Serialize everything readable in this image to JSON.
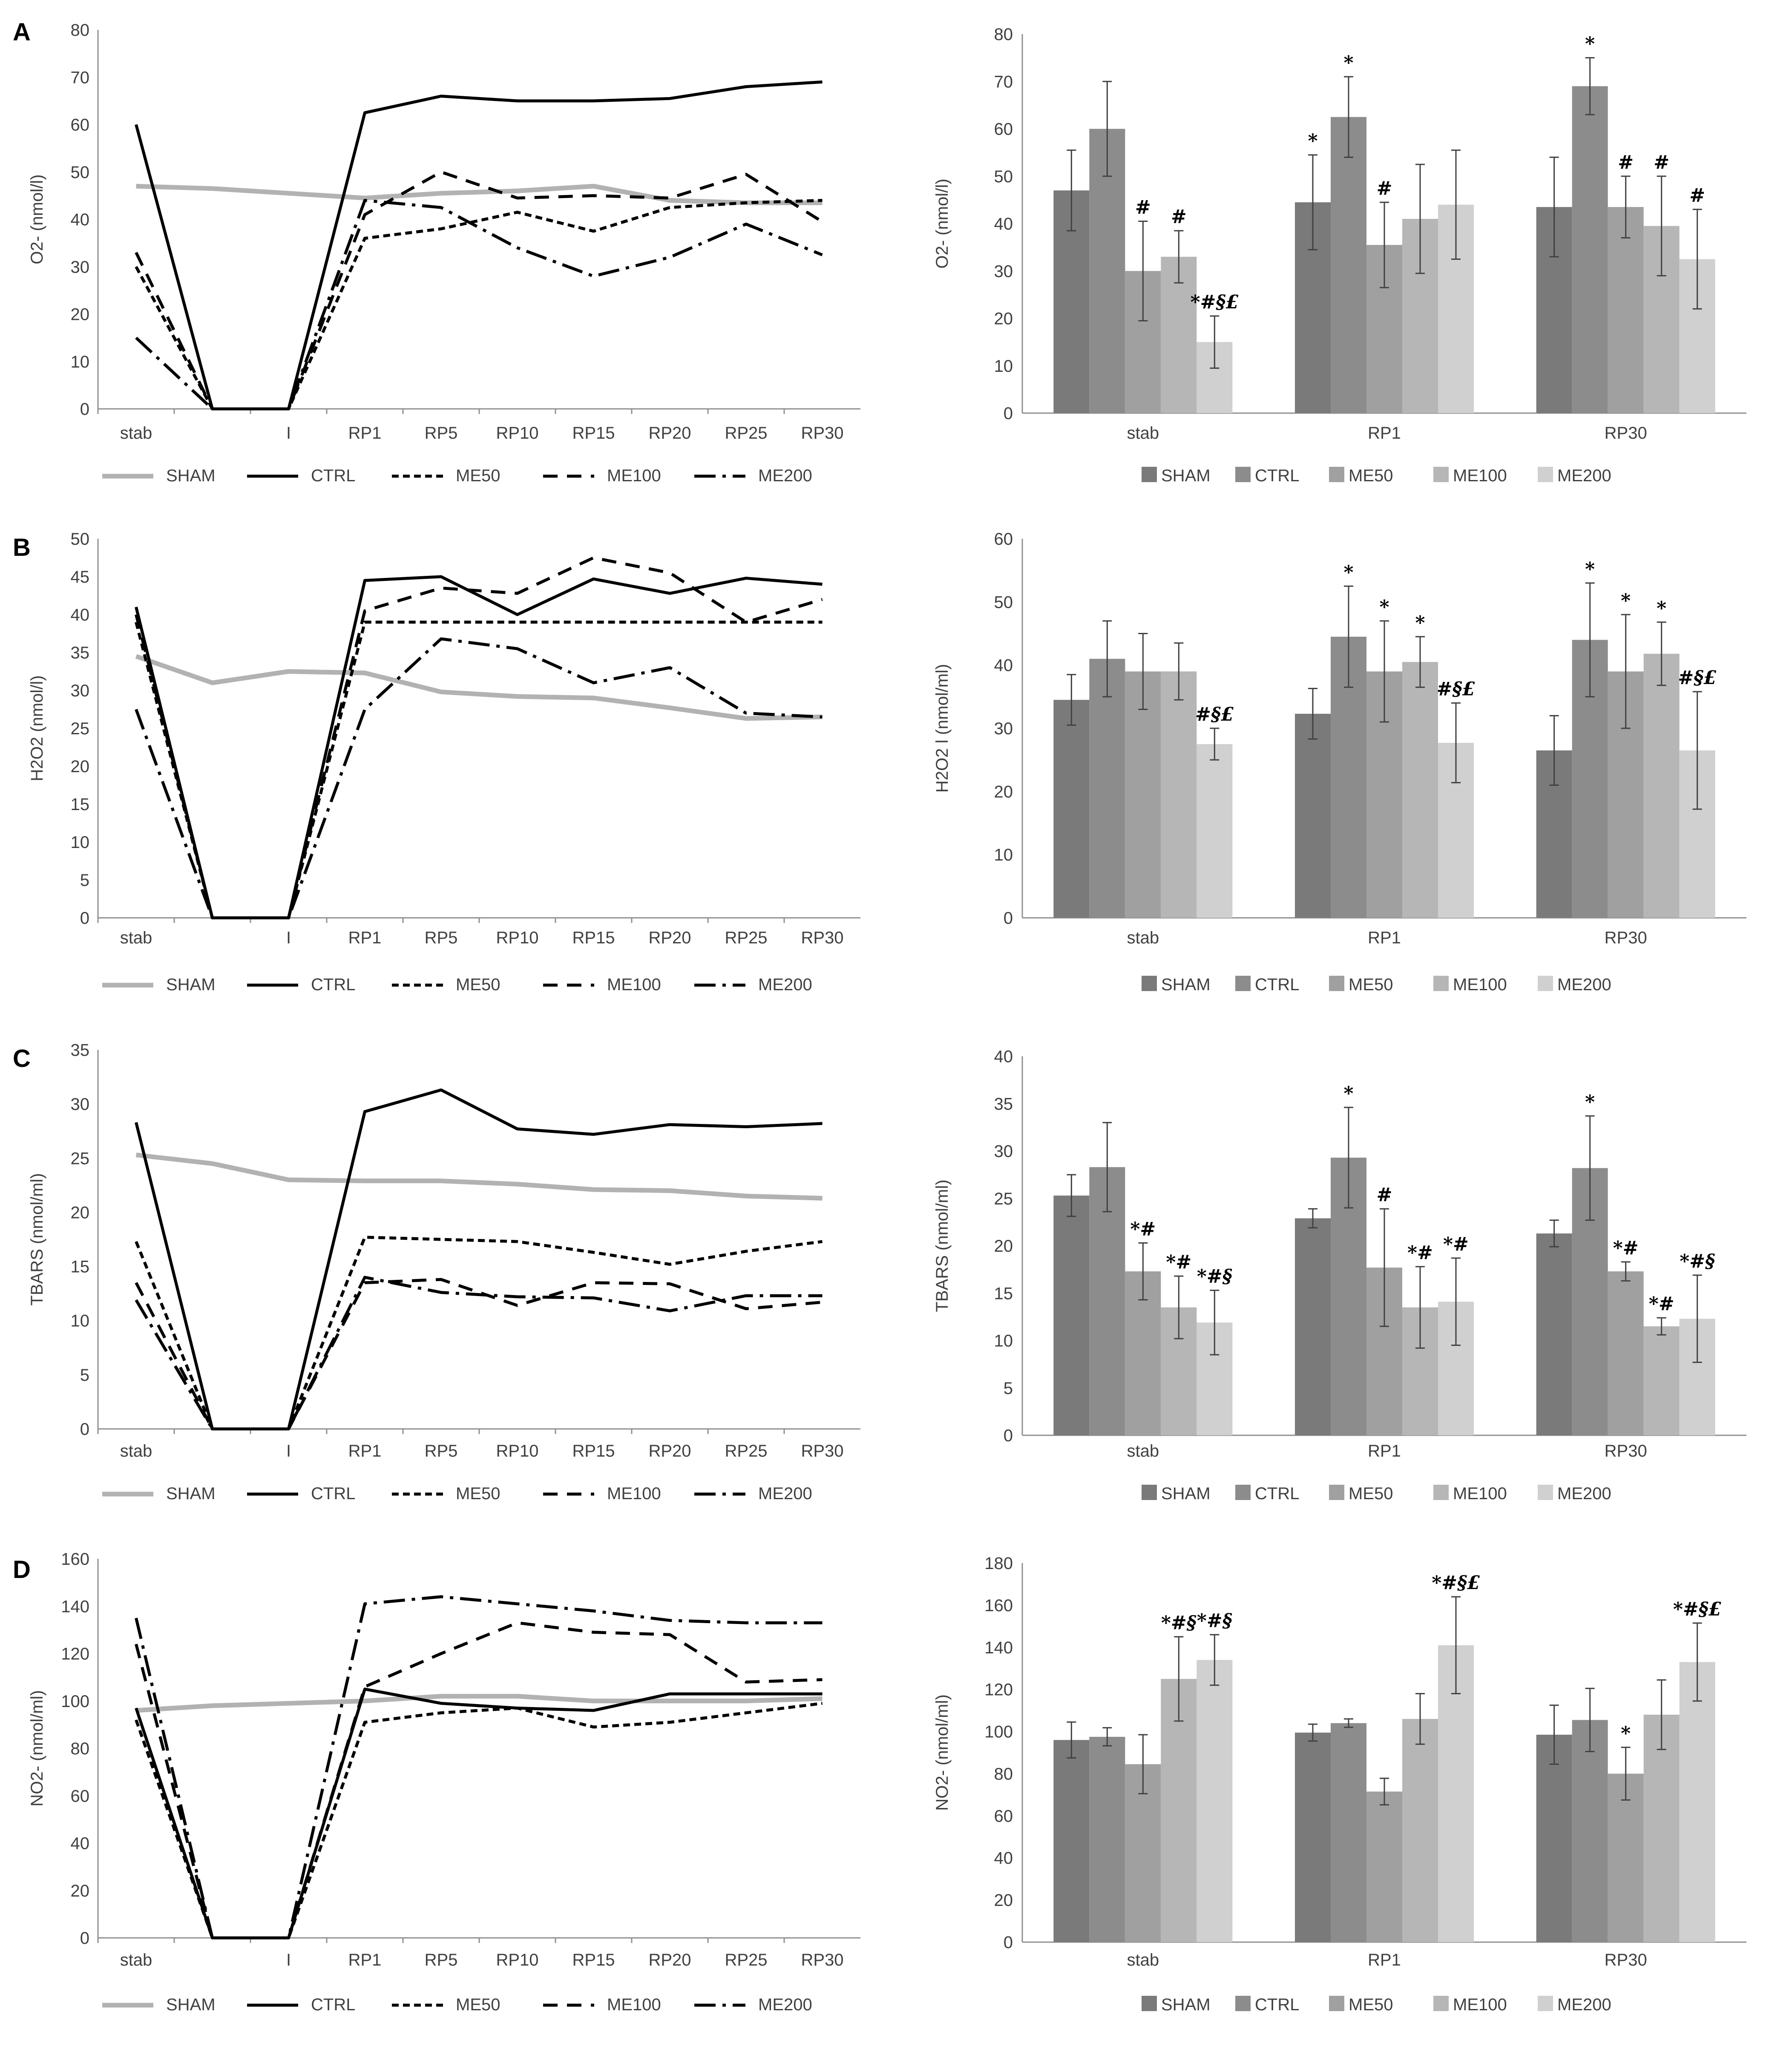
{
  "figure": {
    "panel_labels": [
      "A",
      "B",
      "C",
      "D"
    ],
    "line_legend": [
      "SHAM",
      "CTRL",
      "ME50",
      "ME100",
      "ME200"
    ],
    "bar_legend": [
      "SHAM",
      "CTRL",
      "ME50",
      "ME100",
      "ME200"
    ],
    "colors": {
      "SHAM": "#b2b2b2",
      "CTRL": "#000000",
      "bar_shades": [
        "#7a7a7a",
        "#8c8c8c",
        "#a0a0a0",
        "#b6b6b6",
        "#d0d0d0"
      ],
      "axis": "#8f8f8f",
      "text": "#404040"
    }
  },
  "chart_data": [
    {
      "panel": "A",
      "type": "line",
      "ylabel": "O2- (nmol/l)",
      "ylim": [
        0,
        80
      ],
      "ytick_step": 10,
      "x": [
        "stab",
        "",
        "I",
        "RP1",
        "RP5",
        "RP10",
        "RP15",
        "RP20",
        "RP25",
        "RP30"
      ],
      "series": [
        {
          "name": "SHAM",
          "values": [
            47,
            46.5,
            45.5,
            44.5,
            45.5,
            46,
            47,
            44,
            43.5,
            43.5
          ]
        },
        {
          "name": "CTRL",
          "values": [
            60,
            0,
            0,
            62.5,
            66,
            65,
            65,
            65.5,
            68,
            69
          ]
        },
        {
          "name": "ME50",
          "values": [
            30,
            0,
            0,
            36,
            38,
            41.5,
            37.5,
            42.5,
            43.5,
            44
          ]
        },
        {
          "name": "ME100",
          "values": [
            33,
            0,
            0,
            41,
            50,
            44.5,
            45,
            44.5,
            49.5,
            39.5
          ]
        },
        {
          "name": "ME200",
          "values": [
            15,
            0,
            0,
            44,
            42.5,
            34,
            28,
            32,
            39,
            32.5
          ]
        }
      ]
    },
    {
      "panel": "A",
      "type": "bar",
      "ylabel": "O2- (nmol/l)",
      "ylim": [
        0,
        80
      ],
      "ytick_step": 10,
      "categories": [
        "stab",
        "RP1",
        "RP30"
      ],
      "series": [
        {
          "name": "SHAM",
          "values": [
            47,
            44.5,
            43.5
          ],
          "errors": [
            8.5,
            10,
            10.5
          ]
        },
        {
          "name": "CTRL",
          "values": [
            60,
            62.5,
            69
          ],
          "errors": [
            10,
            8.5,
            6
          ]
        },
        {
          "name": "ME50",
          "values": [
            30,
            35.5,
            43.5
          ],
          "errors": [
            10.5,
            9,
            6.5
          ]
        },
        {
          "name": "ME100",
          "values": [
            33,
            41,
            39.5
          ],
          "errors": [
            5.5,
            11.5,
            10.5
          ]
        },
        {
          "name": "ME200",
          "values": [
            15,
            44,
            32.5
          ],
          "errors": [
            5.5,
            11.5,
            10.5
          ]
        }
      ],
      "annotations": [
        [
          "",
          "",
          "#",
          "#",
          "*#§£"
        ],
        [
          "*",
          "*",
          "#",
          "",
          ""
        ],
        [
          "",
          "*",
          "#",
          "#",
          "#"
        ]
      ]
    },
    {
      "panel": "B",
      "type": "line",
      "ylabel": "H2O2 (nmol/l)",
      "ylim": [
        0,
        50
      ],
      "ytick_step": 5,
      "x": [
        "stab",
        "",
        "I",
        "RP1",
        "RP5",
        "RP10",
        "RP15",
        "RP20",
        "RP25",
        "RP30"
      ],
      "series": [
        {
          "name": "SHAM",
          "values": [
            34.5,
            31,
            32.5,
            32.3,
            29.8,
            29.2,
            29,
            27.7,
            26.3,
            26.5
          ]
        },
        {
          "name": "CTRL",
          "values": [
            41,
            0,
            0,
            44.5,
            45,
            40,
            44.7,
            42.8,
            44.8,
            44
          ]
        },
        {
          "name": "ME50",
          "values": [
            39,
            0,
            0,
            39,
            39,
            39,
            39,
            39,
            39,
            39
          ]
        },
        {
          "name": "ME100",
          "values": [
            40,
            0,
            0,
            40.5,
            43.5,
            42.8,
            47.5,
            45.5,
            39,
            42
          ]
        },
        {
          "name": "ME200",
          "values": [
            27.5,
            0,
            0,
            27.5,
            36.8,
            35.5,
            31,
            33,
            27,
            26.5
          ]
        }
      ]
    },
    {
      "panel": "B",
      "type": "bar",
      "ylabel": "H2O2 l (nmol/ml)",
      "ylim": [
        0,
        60
      ],
      "ytick_step": 10,
      "categories": [
        "stab",
        "RP1",
        "RP30"
      ],
      "series": [
        {
          "name": "SHAM",
          "values": [
            34.5,
            32.3,
            26.5
          ],
          "errors": [
            4,
            4,
            5.5
          ]
        },
        {
          "name": "CTRL",
          "values": [
            41,
            44.5,
            44
          ],
          "errors": [
            6,
            8,
            9
          ]
        },
        {
          "name": "ME50",
          "values": [
            39,
            39,
            39
          ],
          "errors": [
            6,
            8,
            9
          ]
        },
        {
          "name": "ME100",
          "values": [
            39,
            40.5,
            41.8
          ],
          "errors": [
            4.5,
            4,
            5
          ]
        },
        {
          "name": "ME200",
          "values": [
            27.5,
            27.7,
            26.5
          ],
          "errors": [
            2.5,
            6.3,
            9.3
          ]
        }
      ],
      "annotations": [
        [
          "",
          "",
          "",
          "",
          "#§£"
        ],
        [
          "",
          "*",
          "*",
          "*",
          "#§£"
        ],
        [
          "",
          "*",
          "*",
          "*",
          "#§£"
        ]
      ]
    },
    {
      "panel": "C",
      "type": "line",
      "ylabel": "TBARS (nmol/ml)",
      "ylim": [
        0,
        35
      ],
      "ytick_step": 5,
      "x": [
        "stab",
        "",
        "I",
        "RP1",
        "RP5",
        "RP10",
        "RP15",
        "RP20",
        "RP25",
        "RP30"
      ],
      "series": [
        {
          "name": "SHAM",
          "values": [
            25.3,
            24.5,
            23,
            22.9,
            22.9,
            22.6,
            22.1,
            22,
            21.5,
            21.3
          ]
        },
        {
          "name": "CTRL",
          "values": [
            28.3,
            0,
            0,
            29.3,
            31.3,
            27.7,
            27.2,
            28.1,
            27.9,
            28.2
          ]
        },
        {
          "name": "ME50",
          "values": [
            17.3,
            0,
            0,
            17.7,
            17.5,
            17.3,
            16.3,
            15.2,
            16.4,
            17.3
          ]
        },
        {
          "name": "ME100",
          "values": [
            13.5,
            0,
            0,
            13.5,
            13.8,
            11.4,
            13.5,
            13.4,
            11.1,
            11.7
          ]
        },
        {
          "name": "ME200",
          "values": [
            11.9,
            0,
            0,
            14,
            12.6,
            12.2,
            12.1,
            10.9,
            12.3,
            12.3
          ]
        }
      ]
    },
    {
      "panel": "C",
      "type": "bar",
      "ylabel": "TBARS (nmol/ml)",
      "ylim": [
        0,
        40
      ],
      "ytick_step": 5,
      "categories": [
        "stab",
        "RP1",
        "RP30"
      ],
      "series": [
        {
          "name": "SHAM",
          "values": [
            25.3,
            22.9,
            21.3
          ],
          "errors": [
            2.2,
            1,
            1.4
          ]
        },
        {
          "name": "CTRL",
          "values": [
            28.3,
            29.3,
            28.2
          ],
          "errors": [
            4.7,
            5.3,
            5.5
          ]
        },
        {
          "name": "ME50",
          "values": [
            17.3,
            17.7,
            17.3
          ],
          "errors": [
            3,
            6.2,
            1
          ]
        },
        {
          "name": "ME100",
          "values": [
            13.5,
            13.5,
            11.5
          ],
          "errors": [
            3.3,
            4.3,
            0.9
          ]
        },
        {
          "name": "ME200",
          "values": [
            11.9,
            14.1,
            12.3
          ],
          "errors": [
            3.4,
            4.6,
            4.6
          ]
        }
      ],
      "annotations": [
        [
          "",
          "",
          "*#",
          "*#",
          "*#§"
        ],
        [
          "",
          "*",
          "#",
          "*#",
          "*#"
        ],
        [
          "",
          "*",
          "*#",
          "*#",
          "*#§"
        ]
      ]
    },
    {
      "panel": "D",
      "type": "line",
      "ylabel": "NO2- (nmol/ml)",
      "ylim": [
        0,
        160
      ],
      "ytick_step": 20,
      "x": [
        "stab",
        "",
        "I",
        "RP1",
        "RP5",
        "RP10",
        "RP15",
        "RP20",
        "RP25",
        "RP30"
      ],
      "series": [
        {
          "name": "SHAM",
          "values": [
            96,
            98,
            99,
            100,
            102,
            102,
            100,
            100,
            100,
            101
          ]
        },
        {
          "name": "CTRL",
          "values": [
            97,
            0,
            0,
            105,
            99,
            97,
            96,
            103,
            103,
            103
          ]
        },
        {
          "name": "ME50",
          "values": [
            92,
            0,
            0,
            91,
            95,
            97,
            89,
            91,
            95,
            99
          ]
        },
        {
          "name": "ME100",
          "values": [
            124,
            0,
            0,
            106,
            120,
            133,
            129,
            128,
            108,
            109
          ]
        },
        {
          "name": "ME200",
          "values": [
            135,
            0,
            0,
            141,
            144,
            141,
            138,
            134,
            133,
            133
          ]
        }
      ]
    },
    {
      "panel": "D",
      "type": "bar",
      "ylabel": "NO2- (nmol/ml)",
      "ylim": [
        0,
        180
      ],
      "ytick_step": 20,
      "categories": [
        "stab",
        "RP1",
        "RP30"
      ],
      "series": [
        {
          "name": "SHAM",
          "values": [
            96,
            99.5,
            98.5
          ],
          "errors": [
            8.5,
            4,
            14
          ]
        },
        {
          "name": "CTRL",
          "values": [
            97.5,
            104,
            105.5
          ],
          "errors": [
            4.3,
            2,
            15
          ]
        },
        {
          "name": "ME50",
          "values": [
            84.5,
            71.5,
            80
          ],
          "errors": [
            14,
            6.3,
            12.5
          ]
        },
        {
          "name": "ME100",
          "values": [
            125,
            106,
            108
          ],
          "errors": [
            20,
            12,
            16.5
          ]
        },
        {
          "name": "ME200",
          "values": [
            134,
            141,
            133
          ],
          "errors": [
            12,
            23,
            18.5
          ]
        }
      ],
      "annotations": [
        [
          "",
          "",
          "",
          "*#§",
          "*#§"
        ],
        [
          "",
          "",
          "",
          "",
          "*#§£"
        ],
        [
          "",
          "",
          "*",
          "",
          "*#§£"
        ]
      ]
    }
  ]
}
